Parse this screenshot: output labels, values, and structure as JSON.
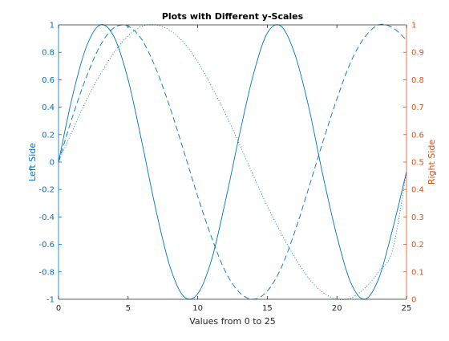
{
  "chart_data": {
    "type": "line",
    "title": "Plots with Different y-Scales",
    "xlabel": "Values from 0 to 25",
    "ylabel_left": "Left Side",
    "ylabel_right": "Right Side",
    "xlim": [
      0,
      25
    ],
    "ylim_left": [
      -1,
      1
    ],
    "ylim_right": [
      0,
      1
    ],
    "grid": false,
    "legend": "none",
    "x_ticks": [
      0,
      5,
      10,
      15,
      20,
      25
    ],
    "x_tick_labels": [
      "0",
      "5",
      "10",
      "15",
      "20",
      "25"
    ],
    "y_left_ticks": [
      -1,
      -0.8,
      -0.6,
      -0.4,
      -0.2,
      0,
      0.2,
      0.4,
      0.6,
      0.8,
      1
    ],
    "y_left_tick_labels": [
      "-1",
      "-0.8",
      "-0.6",
      "-0.4",
      "-0.2",
      "0",
      "0.2",
      "0.4",
      "0.6",
      "0.8",
      "1"
    ],
    "y_right_ticks": [
      0,
      0.1,
      0.2,
      0.3,
      0.4,
      0.5,
      0.6,
      0.7,
      0.8,
      0.9,
      1
    ],
    "y_right_tick_labels": [
      "0",
      "0.1",
      "0.2",
      "0.3",
      "0.4",
      "0.5",
      "0.6",
      "0.7",
      "0.8",
      "0.9",
      "1"
    ],
    "series": [
      {
        "axis": "left",
        "style": "solid",
        "x": [
          0,
          1,
          2,
          3,
          4,
          5,
          6,
          7,
          8,
          9,
          10,
          11,
          12,
          13,
          14,
          15,
          16,
          17,
          18,
          19,
          20,
          21,
          22,
          23,
          24,
          25
        ],
        "y": [
          0,
          0.48,
          0.84,
          1.0,
          0.91,
          0.6,
          0.14,
          -0.35,
          -0.76,
          -0.98,
          -0.96,
          -0.71,
          -0.28,
          0.2,
          0.64,
          0.94,
          0.99,
          0.78,
          0.39,
          -0.1,
          -0.54,
          -0.88,
          -1.0,
          -0.85,
          -0.49,
          -0.07
        ]
      },
      {
        "axis": "left",
        "style": "dashed",
        "x": [
          0,
          1,
          2,
          3,
          4,
          5,
          6,
          7,
          8,
          9,
          10,
          11,
          12,
          13,
          14,
          15,
          16,
          17,
          18,
          19,
          20,
          21,
          22,
          23,
          24,
          25
        ],
        "y": [
          0,
          0.33,
          0.62,
          0.85,
          0.98,
          0.99,
          0.89,
          0.68,
          0.4,
          0.08,
          -0.25,
          -0.55,
          -0.8,
          -0.95,
          -1.0,
          -0.94,
          -0.77,
          -0.5,
          -0.18,
          0.15,
          0.46,
          0.73,
          0.91,
          1.0,
          0.98,
          0.89
        ]
      },
      {
        "axis": "left",
        "style": "dotted",
        "x": [
          0,
          1,
          2,
          3,
          4,
          5,
          6,
          7,
          8,
          9,
          10,
          11,
          12,
          13,
          14,
          15,
          16,
          17,
          18,
          19,
          20,
          21,
          22,
          23,
          24,
          25
        ],
        "y": [
          0,
          0.23,
          0.45,
          0.64,
          0.8,
          0.92,
          0.99,
          1.0,
          0.96,
          0.87,
          0.73,
          0.55,
          0.35,
          0.13,
          -0.1,
          -0.32,
          -0.52,
          -0.7,
          -0.85,
          -0.95,
          -1.0,
          -0.99,
          -0.92,
          -0.8,
          -0.64,
          -0.07
        ]
      }
    ]
  },
  "colors": {
    "left_axis": "#0072BD",
    "right_axis": "#D95319",
    "lines": "#0072BD",
    "frame": "#262626",
    "text": "#262626"
  }
}
